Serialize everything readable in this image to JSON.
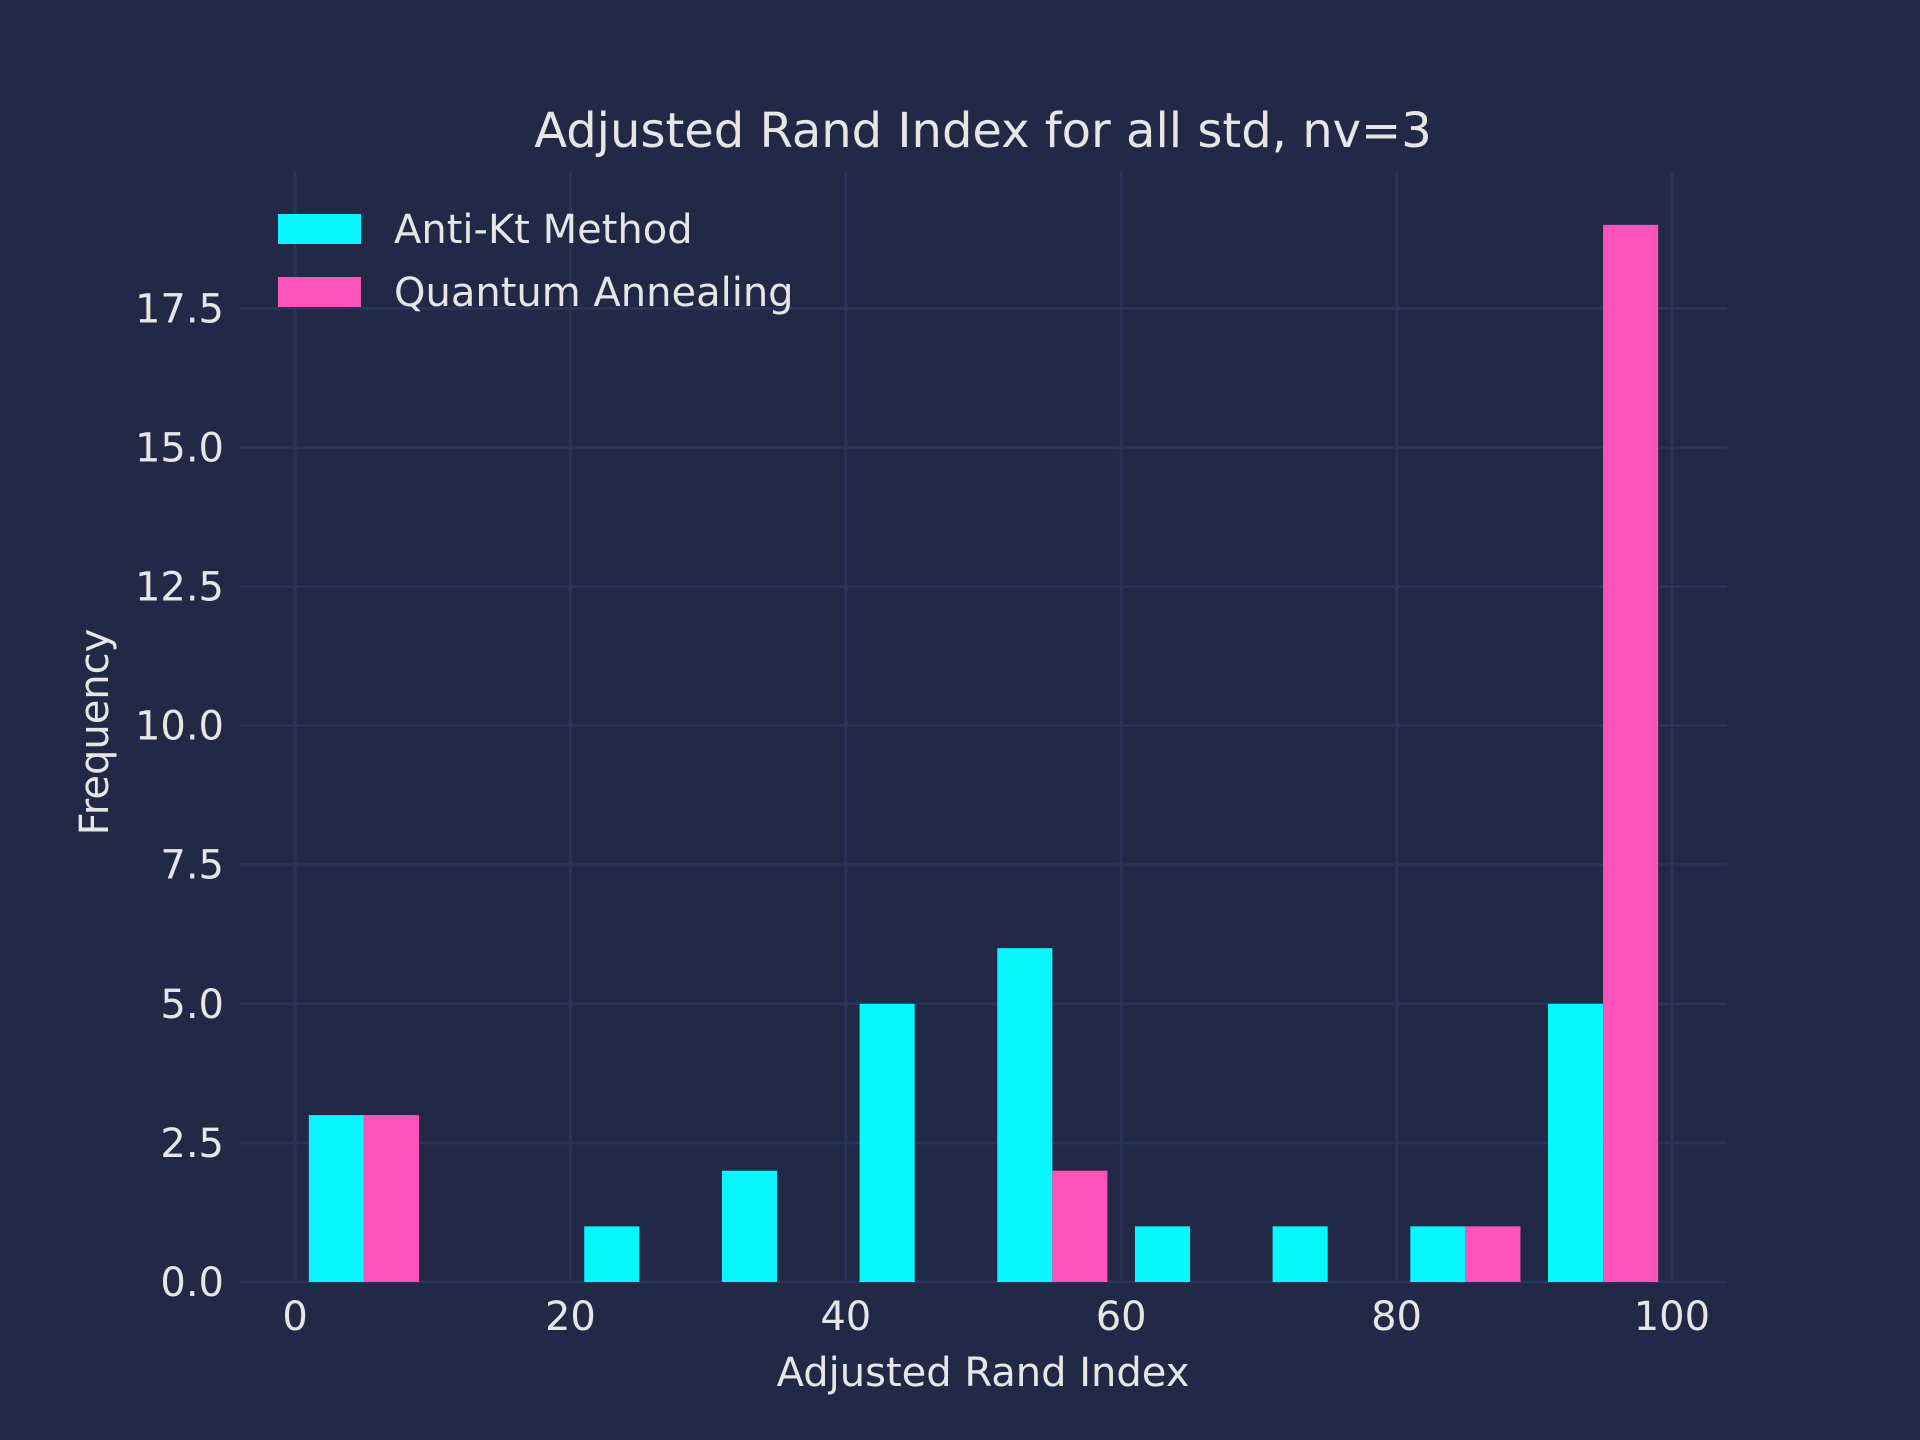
{
  "chart_data": {
    "type": "bar",
    "title": "Adjusted Rand Index for all std, nv=3",
    "xlabel": "Adjusted Rand Index",
    "ylabel": "Frequency",
    "xlim": [
      -4,
      104
    ],
    "ylim": [
      0,
      19.95
    ],
    "x_ticks": [
      "0",
      "20",
      "40",
      "60",
      "80",
      "100"
    ],
    "x_tick_values": [
      0,
      20,
      40,
      60,
      80,
      100
    ],
    "y_ticks": [
      "0.0",
      "2.5",
      "5.0",
      "7.5",
      "10.0",
      "12.5",
      "15.0",
      "17.5"
    ],
    "y_tick_values": [
      0,
      2.5,
      5,
      7.5,
      10,
      12.5,
      15,
      17.5
    ],
    "bins": [
      [
        1,
        9
      ],
      [
        11,
        19
      ],
      [
        21,
        29
      ],
      [
        31,
        39
      ],
      [
        41,
        49
      ],
      [
        51,
        59
      ],
      [
        61,
        69
      ],
      [
        71,
        79
      ],
      [
        81,
        89
      ],
      [
        91,
        99
      ]
    ],
    "grid": true,
    "legend_position": "top-left",
    "series": [
      {
        "name": "Anti-Kt Method",
        "color": "#08f7fe",
        "values": [
          3,
          0,
          1,
          2,
          5,
          6,
          1,
          1,
          1,
          5
        ]
      },
      {
        "name": "Quantum Annealing",
        "color": "#fe53bb",
        "values": [
          3,
          0,
          0,
          0,
          0,
          2,
          0,
          0,
          1,
          19
        ]
      }
    ]
  }
}
